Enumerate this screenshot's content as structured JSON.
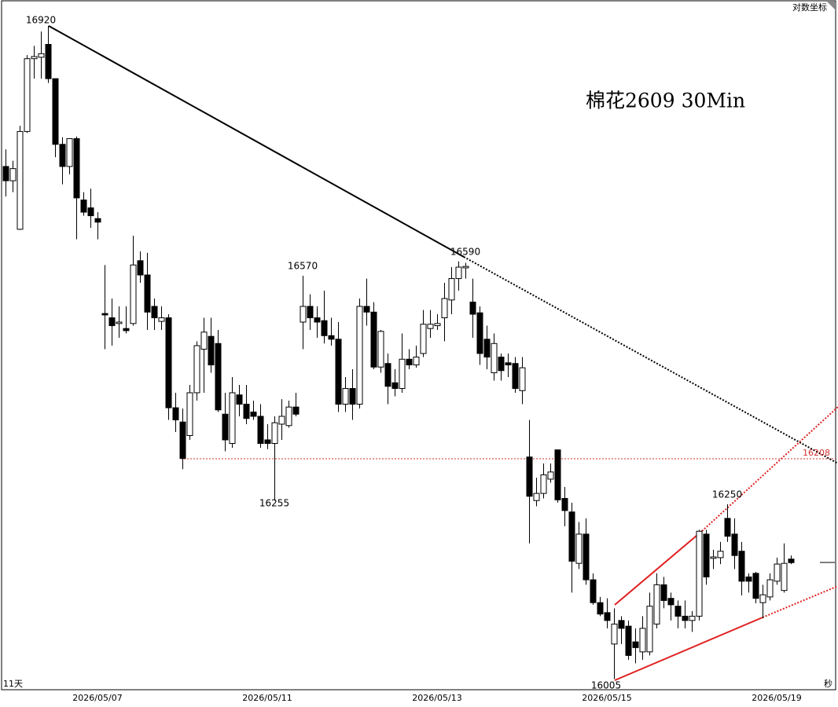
{
  "chart_data": {
    "type": "candlestick",
    "title": "棉花2609 30Min",
    "scale_button": "对数坐标",
    "period_label": "11天",
    "corner_label": "秒",
    "hline_label": "16208",
    "price_labels": [
      16920,
      16570,
      16590,
      16255,
      16250,
      16005
    ],
    "up_color": "#ffffff",
    "down_color": "#000000",
    "ylim": [
      15990,
      16954
    ],
    "categories": [
      null,
      null,
      null,
      null,
      null,
      null,
      null,
      null,
      null,
      null,
      null,
      null,
      null,
      "2026/05/07",
      null,
      null,
      null,
      null,
      null,
      null,
      null,
      null,
      null,
      null,
      null,
      null,
      null,
      null,
      null,
      null,
      null,
      null,
      null,
      null,
      null,
      null,
      null,
      "2026/05/11",
      null,
      null,
      null,
      null,
      null,
      null,
      null,
      null,
      null,
      null,
      null,
      null,
      null,
      null,
      null,
      null,
      null,
      null,
      null,
      null,
      null,
      null,
      null,
      "2026/05/13",
      null,
      null,
      null,
      null,
      null,
      null,
      null,
      null,
      null,
      null,
      null,
      null,
      null,
      null,
      null,
      null,
      null,
      null,
      null,
      null,
      null,
      null,
      null,
      "2026/05/15",
      null,
      null,
      null,
      null,
      null,
      null,
      null,
      null,
      null,
      null,
      null,
      null,
      null,
      null,
      null,
      null,
      null,
      null,
      null,
      null,
      null,
      null,
      null,
      "2026/05/19",
      null,
      null
    ],
    "open": [
      16723,
      16703,
      16635,
      16772,
      16874,
      16876,
      16894,
      16846,
      16754,
      16723,
      16762,
      16676,
      16665,
      16650,
      16517,
      16511,
      16503,
      16496,
      16503,
      16591,
      16571,
      16527,
      16506,
      16511,
      16385,
      16365,
      16346,
      16406,
      16467,
      16485,
      16475,
      16376,
      16335,
      16403,
      16390,
      16379,
      16373,
      16340,
      16335,
      16362,
      16360,
      16386,
      16505,
      16527,
      16511,
      16507,
      16486,
      16481,
      16390,
      16412,
      16390,
      16527,
      16519,
      16442,
      16447,
      16420,
      16412,
      16453,
      16445,
      16461,
      16496,
      16500,
      16511,
      16536,
      16566,
      16581,
      16533,
      16518,
      16481,
      16434,
      16456,
      16448,
      16447,
      16409,
      16316,
      16255,
      16265,
      16285,
      16326,
      16258,
      16239,
      16167,
      16208,
      16144,
      16112,
      16098,
      16054,
      16087,
      16079,
      16057,
      16043,
      16043,
      16082,
      16137,
      16118,
      16107,
      16093,
      16087,
      16093,
      16208,
      16174,
      16175,
      16230,
      16208,
      16184,
      16148,
      16153,
      16112,
      16120,
      16142,
      16129,
      16173
    ],
    "high": [
      16747,
      16731,
      16780,
      16879,
      16892,
      16912,
      16920,
      16846,
      16764,
      16762,
      16765,
      16687,
      16692,
      16659,
      16585,
      16538,
      16527,
      16527,
      16626,
      16604,
      16602,
      16538,
      16527,
      16516,
      16406,
      16384,
      16417,
      16478,
      16511,
      16511,
      16494,
      16406,
      16428,
      16417,
      16417,
      16395,
      16390,
      16362,
      16373,
      16397,
      16395,
      16406,
      16570,
      16544,
      16527,
      16549,
      16511,
      16505,
      16428,
      16439,
      16538,
      16566,
      16533,
      16494,
      16461,
      16439,
      16489,
      16467,
      16472,
      16522,
      16522,
      16516,
      16560,
      16582,
      16590,
      16588,
      16566,
      16527,
      16500,
      16489,
      16461,
      16461,
      16456,
      16456,
      16368,
      16287,
      16307,
      16307,
      16326,
      16274,
      16252,
      16225,
      16230,
      16153,
      16120,
      16118,
      16104,
      16093,
      16087,
      16076,
      16093,
      16126,
      16153,
      16148,
      16126,
      16115,
      16115,
      16100,
      16214,
      16214,
      16186,
      16197,
      16250,
      16230,
      16197,
      16153,
      16155,
      16137,
      16153,
      16175,
      16195,
      16178
    ],
    "low": [
      16681,
      16687,
      16634,
      16770,
      16846,
      16846,
      16840,
      16736,
      16698,
      16712,
      16621,
      16654,
      16637,
      16621,
      16467,
      16472,
      16483,
      16489,
      16500,
      16560,
      16494,
      16494,
      16494,
      16368,
      16351,
      16299,
      16340,
      16395,
      16406,
      16434,
      16379,
      16324,
      16329,
      16373,
      16362,
      16368,
      16329,
      16327,
      16255,
      16340,
      16357,
      16373,
      16467,
      16494,
      16483,
      16475,
      16472,
      16379,
      16379,
      16368,
      16384,
      16500,
      16439,
      16434,
      16390,
      16401,
      16406,
      16439,
      16441,
      16456,
      16483,
      16494,
      16478,
      16516,
      16549,
      16566,
      16483,
      16445,
      16439,
      16423,
      16423,
      16428,
      16406,
      16390,
      16195,
      16247,
      16258,
      16280,
      16252,
      16219,
      16126,
      16159,
      16137,
      16109,
      16093,
      16076,
      16005,
      16054,
      16032,
      16027,
      16032,
      16038,
      16076,
      16104,
      16087,
      16076,
      16076,
      16071,
      16087,
      16137,
      16159,
      16166,
      16197,
      16159,
      16122,
      16126,
      16111,
      16090,
      16115,
      16137,
      16126,
      16166
    ],
    "close": [
      16703,
      16720,
      16772,
      16874,
      16877,
      16881,
      16846,
      16754,
      16723,
      16762,
      16679,
      16659,
      16654,
      16645,
      16515,
      16500,
      16505,
      16493,
      16585,
      16571,
      16519,
      16511,
      16511,
      16385,
      16368,
      16314,
      16406,
      16472,
      16491,
      16445,
      16382,
      16340,
      16406,
      16390,
      16370,
      16373,
      16335,
      16335,
      16364,
      16373,
      16386,
      16376,
      16527,
      16511,
      16505,
      16486,
      16481,
      16390,
      16412,
      16390,
      16527,
      16519,
      16442,
      16492,
      16415,
      16412,
      16453,
      16445,
      16456,
      16502,
      16502,
      16503,
      16538,
      16566,
      16582,
      16583,
      16516,
      16461,
      16456,
      16475,
      16437,
      16445,
      16412,
      16441,
      16261,
      16265,
      16291,
      16295,
      16256,
      16241,
      16170,
      16208,
      16144,
      16112,
      16096,
      16087,
      16082,
      16076,
      16038,
      16049,
      16076,
      16107,
      16137,
      16115,
      16109,
      16093,
      16087,
      16093,
      16212,
      16148,
      16176,
      16184,
      16205,
      16178,
      16142,
      16142,
      16118,
      16123,
      16144,
      16166,
      16167,
      16168
    ]
  }
}
